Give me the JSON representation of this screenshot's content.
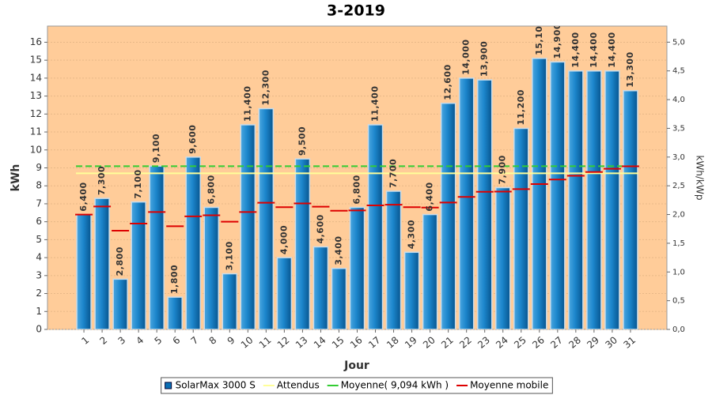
{
  "chart_data": {
    "type": "bar",
    "title": "3-2019",
    "x_label": "Jour",
    "y_label": "kWh",
    "y2_label": "kWh/kWp",
    "categories": [
      "1",
      "2",
      "3",
      "4",
      "5",
      "6",
      "7",
      "8",
      "9",
      "10",
      "11",
      "12",
      "13",
      "14",
      "15",
      "16",
      "17",
      "18",
      "19",
      "20",
      "21",
      "22",
      "23",
      "24",
      "25",
      "26",
      "27",
      "28",
      "29",
      "30",
      "31"
    ],
    "series": [
      {
        "name": "SolarMax 3000 S",
        "color": "#0a6fb4",
        "values": [
          6.4,
          7.3,
          2.8,
          7.1,
          9.1,
          1.8,
          9.6,
          6.8,
          3.1,
          11.4,
          12.3,
          4.0,
          9.5,
          4.6,
          3.4,
          6.8,
          11.4,
          7.7,
          4.3,
          6.4,
          12.6,
          14.0,
          13.9,
          7.9,
          11.2,
          15.1,
          14.9,
          14.4,
          14.4,
          14.4,
          13.3
        ],
        "value_labels": [
          "6,400",
          "7,300",
          "2,800",
          "7,100",
          "9,100",
          "1,800",
          "9,600",
          "6,800",
          "3,100",
          "11,400",
          "12,300",
          "4,000",
          "9,500",
          "4,600",
          "3,400",
          "6,800",
          "11,400",
          "7,700",
          "4,300",
          "6,400",
          "12,600",
          "14,000",
          "13,900",
          "7,900",
          "11,200",
          "15,100",
          "14,900",
          "14,400",
          "14,400",
          "14,400",
          "13,300"
        ]
      },
      {
        "name": "Attendus",
        "color": "#ffff99",
        "value": 8.7
      },
      {
        "name": "Moyenne( 9,094 kWh )",
        "color": "#33cc33",
        "value": 9.094
      },
      {
        "name": "Moyenne mobile",
        "color": "#dd0000",
        "values": [
          6.4,
          6.85,
          5.5,
          5.9,
          6.54,
          5.75,
          6.3,
          6.36,
          6.0,
          6.54,
          7.06,
          6.81,
          7.02,
          6.84,
          6.61,
          6.63,
          6.91,
          6.95,
          6.81,
          6.79,
          7.07,
          7.38,
          7.67,
          7.68,
          7.82,
          8.1,
          8.35,
          8.56,
          8.77,
          8.95,
          9.09
        ]
      }
    ],
    "ylim": [
      0,
      16.9
    ],
    "yticks": [
      0,
      1,
      2,
      3,
      4,
      5,
      6,
      7,
      8,
      9,
      10,
      11,
      12,
      13,
      14,
      15,
      16
    ],
    "y2lim": [
      0,
      5.28
    ],
    "y2ticks": [
      {
        "value": 0,
        "label": "0,0"
      },
      {
        "value": 0.5,
        "label": "0,5"
      },
      {
        "value": 1,
        "label": "1,0"
      },
      {
        "value": 1.5,
        "label": "1,5"
      },
      {
        "value": 2,
        "label": "2,0"
      },
      {
        "value": 2.5,
        "label": "2,5"
      },
      {
        "value": 3,
        "label": "3,0"
      },
      {
        "value": 3.5,
        "label": "3,5"
      },
      {
        "value": 4,
        "label": "4,0"
      },
      {
        "value": 4.5,
        "label": "4,5"
      },
      {
        "value": 5,
        "label": "5,0"
      }
    ],
    "grid": true,
    "background": "#ffcc99",
    "legend": "bottom"
  }
}
